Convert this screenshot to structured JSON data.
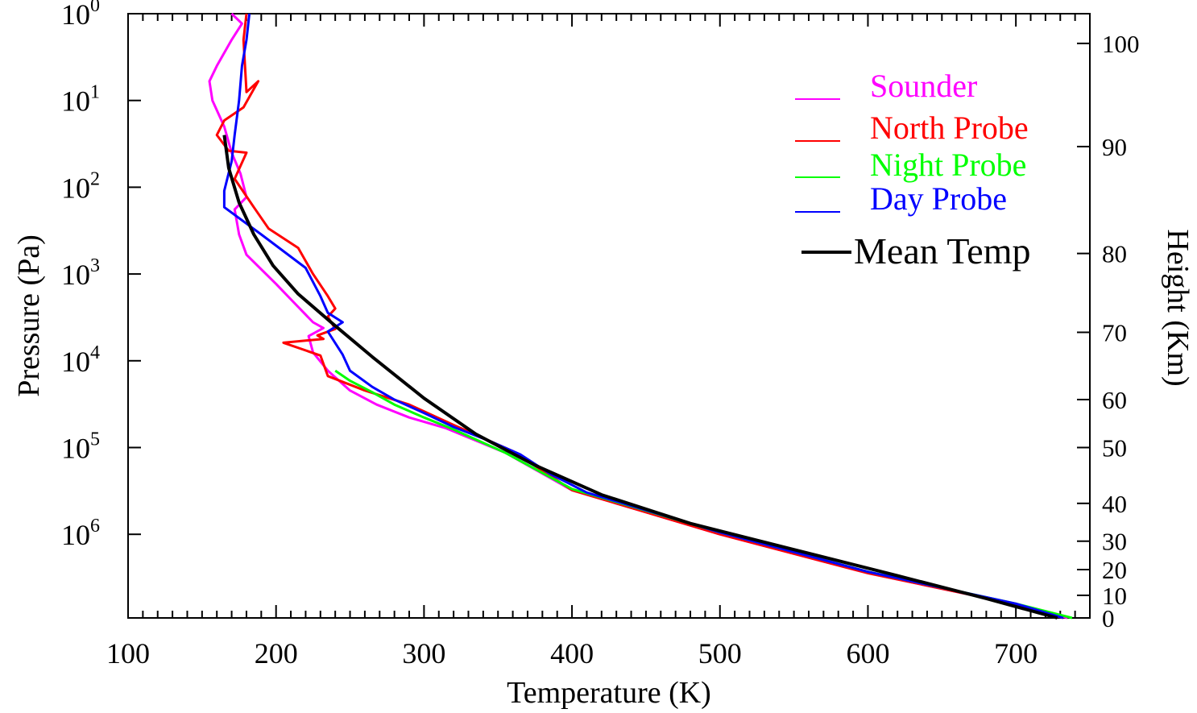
{
  "chart_data": {
    "type": "line",
    "xlabel": "Temperature (K)",
    "ylabel": "Pressure (Pa)",
    "y2label": "Height (Km)",
    "xlim": [
      100,
      750
    ],
    "x_ticks": [
      {
        "value": 100,
        "label": "100"
      },
      {
        "value": 200,
        "label": "200"
      },
      {
        "value": 300,
        "label": "300"
      },
      {
        "value": 400,
        "label": "400"
      },
      {
        "value": 500,
        "label": "500"
      },
      {
        "value": 600,
        "label": "600"
      },
      {
        "value": 700,
        "label": "700"
      }
    ],
    "y_scale": "log",
    "ylim": [
      1,
      9200000
    ],
    "y_ticks": [
      {
        "value": 1,
        "label": "10",
        "exp": "0"
      },
      {
        "value": 10,
        "label": "10",
        "exp": "1"
      },
      {
        "value": 100,
        "label": "10",
        "exp": "2"
      },
      {
        "value": 1000,
        "label": "10",
        "exp": "3"
      },
      {
        "value": 10000,
        "label": "10",
        "exp": "4"
      },
      {
        "value": 100000,
        "label": "10",
        "exp": "5"
      },
      {
        "value": 1000000,
        "label": "10",
        "exp": "6"
      }
    ],
    "y2_ticks": [
      {
        "label": "100",
        "pressure": 2.2
      },
      {
        "label": "90",
        "pressure": 34
      },
      {
        "label": "80",
        "pressure": 580
      },
      {
        "label": "70",
        "pressure": 4700
      },
      {
        "label": "60",
        "pressure": 28000
      },
      {
        "label": "50",
        "pressure": 100000
      },
      {
        "label": "40",
        "pressure": 440000
      },
      {
        "label": "30",
        "pressure": 1200000
      },
      {
        "label": "20",
        "pressure": 2550000
      },
      {
        "label": "10",
        "pressure": 5050000
      },
      {
        "label": "0",
        "pressure": 9200000
      }
    ],
    "legend_position": "top-right",
    "series": [
      {
        "name": "Sounder",
        "color": "#ff00ff",
        "points": [
          [
            170,
            1
          ],
          [
            177,
            1.3
          ],
          [
            170,
            2
          ],
          [
            160,
            4
          ],
          [
            155,
            6
          ],
          [
            157,
            10
          ],
          [
            165,
            20
          ],
          [
            170,
            40
          ],
          [
            176,
            70
          ],
          [
            180,
            130
          ],
          [
            172,
            180
          ],
          [
            175,
            350
          ],
          [
            180,
            600
          ],
          [
            200,
            1300
          ],
          [
            215,
            2400
          ],
          [
            225,
            3600
          ],
          [
            232,
            4200
          ],
          [
            222,
            5200
          ],
          [
            225,
            8000
          ],
          [
            235,
            13000
          ],
          [
            250,
            22000
          ],
          [
            268,
            32000
          ],
          [
            290,
            45000
          ],
          [
            315,
            60000
          ],
          [
            355,
            115000
          ],
          [
            400,
            310000
          ],
          [
            500,
            1000000
          ],
          [
            600,
            2800000
          ],
          [
            700,
            6400000
          ],
          [
            735,
            9200000
          ]
        ]
      },
      {
        "name": "North Probe",
        "color": "#ff0000",
        "points": [
          [
            180,
            1
          ],
          [
            178,
            2
          ],
          [
            180,
            8
          ],
          [
            188,
            6
          ],
          [
            178,
            12
          ],
          [
            165,
            17
          ],
          [
            160,
            25
          ],
          [
            168,
            38
          ],
          [
            180,
            40
          ],
          [
            172,
            80
          ],
          [
            185,
            170
          ],
          [
            195,
            300
          ],
          [
            215,
            500
          ],
          [
            225,
            1000
          ],
          [
            235,
            1800
          ],
          [
            240,
            2500
          ],
          [
            235,
            3100
          ],
          [
            240,
            4300
          ],
          [
            228,
            5100
          ],
          [
            232,
            5600
          ],
          [
            205,
            6200
          ],
          [
            230,
            8700
          ],
          [
            235,
            15000
          ],
          [
            260,
            22000
          ],
          [
            290,
            32000
          ],
          [
            320,
            55000
          ],
          [
            360,
            110000
          ],
          [
            400,
            310000
          ],
          [
            500,
            1000000
          ],
          [
            600,
            2800000
          ],
          [
            700,
            6400000
          ],
          [
            732,
            9200000
          ]
        ]
      },
      {
        "name": "Night Probe",
        "color": "#00ff00",
        "points": [
          [
            240,
            13000
          ],
          [
            250,
            17000
          ],
          [
            265,
            23000
          ],
          [
            280,
            32000
          ],
          [
            300,
            45000
          ],
          [
            320,
            62000
          ],
          [
            355,
            115000
          ],
          [
            400,
            300000
          ],
          [
            500,
            950000
          ],
          [
            600,
            2700000
          ],
          [
            700,
            6300000
          ],
          [
            738,
            9200000
          ]
        ]
      },
      {
        "name": "Day Probe",
        "color": "#0000ff",
        "points": [
          [
            182,
            1
          ],
          [
            180,
            2
          ],
          [
            177,
            4
          ],
          [
            175,
            10
          ],
          [
            172,
            25
          ],
          [
            170,
            50
          ],
          [
            165,
            110
          ],
          [
            165,
            170
          ],
          [
            190,
            350
          ],
          [
            220,
            850
          ],
          [
            230,
            1800
          ],
          [
            235,
            2800
          ],
          [
            245,
            3600
          ],
          [
            235,
            4600
          ],
          [
            245,
            8500
          ],
          [
            250,
            13000
          ],
          [
            265,
            20000
          ],
          [
            280,
            28000
          ],
          [
            300,
            40000
          ],
          [
            320,
            58000
          ],
          [
            345,
            85000
          ],
          [
            365,
            120000
          ],
          [
            385,
            200000
          ],
          [
            410,
            330000
          ],
          [
            500,
            950000
          ],
          [
            600,
            2700000
          ],
          [
            700,
            6300000
          ],
          [
            732,
            9200000
          ]
        ]
      },
      {
        "name": "Mean Temp",
        "color": "#000000",
        "points": [
          [
            165,
            25
          ],
          [
            168,
            60
          ],
          [
            175,
            150
          ],
          [
            185,
            350
          ],
          [
            198,
            800
          ],
          [
            215,
            1700
          ],
          [
            238,
            3700
          ],
          [
            265,
            9000
          ],
          [
            300,
            27000
          ],
          [
            335,
            70000
          ],
          [
            375,
            160000
          ],
          [
            420,
            350000
          ],
          [
            480,
            750000
          ],
          [
            550,
            1500000
          ],
          [
            620,
            3000000
          ],
          [
            680,
            5500000
          ],
          [
            728,
            9200000
          ]
        ]
      }
    ]
  }
}
